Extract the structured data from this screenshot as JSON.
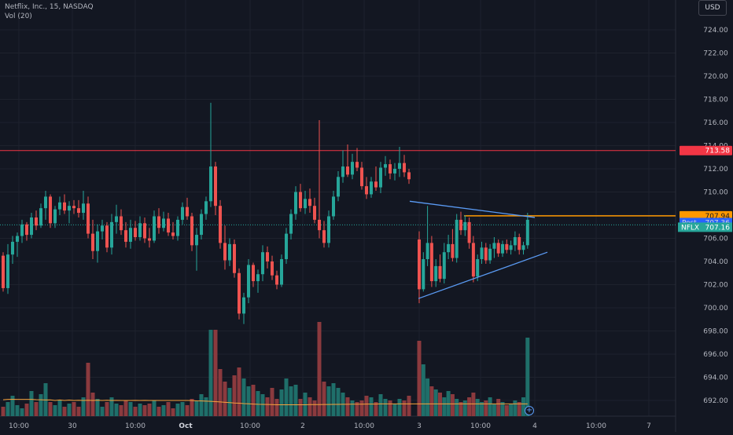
{
  "header": {
    "title": "Netflix, Inc., 15, NASDAQ",
    "volume": "Vol (20)"
  },
  "currency_button": "USD",
  "add_button": "+",
  "price_labels": {
    "resistance": "713.58",
    "orange": "707.94",
    "post": "Post",
    "post_value": "707.36",
    "ticker": "NFLX",
    "last": "707.16"
  },
  "colors": {
    "background": "#131722",
    "up": "#26a69a",
    "down": "#ef5350",
    "vol_up": "#1f6f6a",
    "vol_down": "#8b3a3e",
    "ma": "#f7a23b",
    "trendline": "#5b9cf6",
    "resistance": "#f23645",
    "orange_line": "#ff9800",
    "axis_text": "#b2b5be",
    "grid": "#1e222d"
  },
  "chart_data": {
    "type": "candlestick",
    "symbol": "NFLX",
    "interval": "15",
    "exchange": "NASDAQ",
    "y_ticks": [
      692,
      694,
      696,
      698,
      700,
      702,
      704,
      706,
      708,
      710,
      712,
      714,
      716,
      718,
      720,
      722,
      724
    ],
    "y_range": [
      690.5,
      725.5
    ],
    "x_ticks": [
      "10:00",
      "30",
      "10:00",
      "Oct",
      "10:00",
      "2",
      "10:00",
      "3",
      "10:00",
      "4",
      "10:00",
      "7"
    ],
    "horizontal_levels": {
      "resistance": 713.58,
      "orange": 707.94,
      "post": 707.36,
      "last": 707.16
    },
    "trendlines": [
      {
        "x": [
          521,
          680
        ],
        "y": [
          709.2,
          707.8
        ],
        "color": "trendline"
      },
      {
        "x": [
          532,
          696
        ],
        "y": [
          700.8,
          704.8
        ],
        "color": "trendline"
      }
    ],
    "candles": [
      [
        704.5,
        704.8,
        701.4,
        701.7
      ],
      [
        701.7,
        705.5,
        701.2,
        704.6
      ],
      [
        704.6,
        706.2,
        703.8,
        705.7
      ],
      [
        705.7,
        706.5,
        704.4,
        706.2
      ],
      [
        706.2,
        707.6,
        705.6,
        707.2
      ],
      [
        707.2,
        707.4,
        705.8,
        706.3
      ],
      [
        706.3,
        708.2,
        706.0,
        707.8
      ],
      [
        707.8,
        708.4,
        706.7,
        707.1
      ],
      [
        707.1,
        709.0,
        706.9,
        708.6
      ],
      [
        708.6,
        710.1,
        707.6,
        709.6
      ],
      [
        709.6,
        709.8,
        706.9,
        707.3
      ],
      [
        707.3,
        708.8,
        706.9,
        708.5
      ],
      [
        708.5,
        709.6,
        708.0,
        709.1
      ],
      [
        709.1,
        709.8,
        708.1,
        708.4
      ],
      [
        708.4,
        709.2,
        707.3,
        708.8
      ],
      [
        708.8,
        709.3,
        708.1,
        708.6
      ],
      [
        708.6,
        709.3,
        707.8,
        708.2
      ],
      [
        708.2,
        710.1,
        707.6,
        709.0
      ],
      [
        709.0,
        709.6,
        706.0,
        706.4
      ],
      [
        706.4,
        707.6,
        704.2,
        704.9
      ],
      [
        704.9,
        707.2,
        703.9,
        706.6
      ],
      [
        706.6,
        707.6,
        705.9,
        707.1
      ],
      [
        707.1,
        707.4,
        704.8,
        705.2
      ],
      [
        705.2,
        708.1,
        704.6,
        707.4
      ],
      [
        707.4,
        708.9,
        706.4,
        707.9
      ],
      [
        707.9,
        708.5,
        706.3,
        706.7
      ],
      [
        706.7,
        707.4,
        705.2,
        705.7
      ],
      [
        705.7,
        707.6,
        705.1,
        706.9
      ],
      [
        706.9,
        707.5,
        705.8,
        706.1
      ],
      [
        706.1,
        707.9,
        705.8,
        707.3
      ],
      [
        707.3,
        707.8,
        705.6,
        706.0
      ],
      [
        706.0,
        706.9,
        705.2,
        705.8
      ],
      [
        705.8,
        708.4,
        705.6,
        707.9
      ],
      [
        707.9,
        708.6,
        706.4,
        706.9
      ],
      [
        706.9,
        708.3,
        706.6,
        707.7
      ],
      [
        707.7,
        708.2,
        706.2,
        706.5
      ],
      [
        706.5,
        707.4,
        705.9,
        706.2
      ],
      [
        706.2,
        707.9,
        705.8,
        707.6
      ],
      [
        707.6,
        709.1,
        707.2,
        708.7
      ],
      [
        708.7,
        709.5,
        707.6,
        707.9
      ],
      [
        707.9,
        708.2,
        704.9,
        705.4
      ],
      [
        705.4,
        706.9,
        703.2,
        706.3
      ],
      [
        706.3,
        708.5,
        705.9,
        708.1
      ],
      [
        708.1,
        709.6,
        707.6,
        709.2
      ],
      [
        709.2,
        717.7,
        708.7,
        712.2
      ],
      [
        712.2,
        712.6,
        708.0,
        708.8
      ],
      [
        708.8,
        709.3,
        705.1,
        705.6
      ],
      [
        705.6,
        707.1,
        703.3,
        704.1
      ],
      [
        704.1,
        706.0,
        703.6,
        705.5
      ],
      [
        705.5,
        705.9,
        702.6,
        703.0
      ],
      [
        703.0,
        703.4,
        699.0,
        699.5
      ],
      [
        699.5,
        701.3,
        698.6,
        700.9
      ],
      [
        700.9,
        704.2,
        700.4,
        703.7
      ],
      [
        703.7,
        703.9,
        701.8,
        702.3
      ],
      [
        702.3,
        703.3,
        701.3,
        702.9
      ],
      [
        702.9,
        705.4,
        702.3,
        704.8
      ],
      [
        704.8,
        705.3,
        703.4,
        704.0
      ],
      [
        704.0,
        704.5,
        702.4,
        702.8
      ],
      [
        702.8,
        703.2,
        701.6,
        702.0
      ],
      [
        702.0,
        704.6,
        701.8,
        704.2
      ],
      [
        704.2,
        706.9,
        703.8,
        706.4
      ],
      [
        706.4,
        708.5,
        705.9,
        708.1
      ],
      [
        708.1,
        710.5,
        707.6,
        710.0
      ],
      [
        710.0,
        710.7,
        708.3,
        708.6
      ],
      [
        708.6,
        710.1,
        708.1,
        709.4
      ],
      [
        709.4,
        710.3,
        708.2,
        708.8
      ],
      [
        708.8,
        709.5,
        707.3,
        707.6
      ],
      [
        707.6,
        716.2,
        706.0,
        706.7
      ],
      [
        706.7,
        707.5,
        705.2,
        705.6
      ],
      [
        705.6,
        708.4,
        705.2,
        707.9
      ],
      [
        707.9,
        710.1,
        707.6,
        709.6
      ],
      [
        709.6,
        711.8,
        709.2,
        711.3
      ],
      [
        711.3,
        713.6,
        710.8,
        712.2
      ],
      [
        712.2,
        714.1,
        711.3,
        711.5
      ],
      [
        711.5,
        713.3,
        711.1,
        712.6
      ],
      [
        712.6,
        713.8,
        711.8,
        712.1
      ],
      [
        712.1,
        712.6,
        710.2,
        710.5
      ],
      [
        710.5,
        711.3,
        709.4,
        709.8
      ],
      [
        709.8,
        711.3,
        709.5,
        710.9
      ],
      [
        710.9,
        712.2,
        710.1,
        710.4
      ],
      [
        710.4,
        712.6,
        709.9,
        712.1
      ],
      [
        712.1,
        713.1,
        711.4,
        712.4
      ],
      [
        712.4,
        712.8,
        711.1,
        711.6
      ],
      [
        711.6,
        712.5,
        711.0,
        712.0
      ],
      [
        712.0,
        713.9,
        711.3,
        712.5
      ],
      [
        712.5,
        713.2,
        711.3,
        711.7
      ],
      [
        711.7,
        712.0,
        710.7,
        711.1
      ],
      [
        705.9,
        706.6,
        700.4,
        701.6
      ],
      [
        701.6,
        704.8,
        701.4,
        704.2
      ],
      [
        704.2,
        708.8,
        703.6,
        705.6
      ],
      [
        705.6,
        706.2,
        701.8,
        702.3
      ],
      [
        702.3,
        704.2,
        701.8,
        703.6
      ],
      [
        703.6,
        704.6,
        702.2,
        702.5
      ],
      [
        702.5,
        705.6,
        702.1,
        704.8
      ],
      [
        704.8,
        706.3,
        704.2,
        705.5
      ],
      [
        705.5,
        706.8,
        704.0,
        704.3
      ],
      [
        704.3,
        708.1,
        703.9,
        707.6
      ],
      [
        707.6,
        708.3,
        706.3,
        706.7
      ],
      [
        706.7,
        708.0,
        706.2,
        707.4
      ],
      [
        707.4,
        707.8,
        705.1,
        705.6
      ],
      [
        705.6,
        706.2,
        702.2,
        702.7
      ],
      [
        702.7,
        704.6,
        702.3,
        704.2
      ],
      [
        704.2,
        705.7,
        703.8,
        705.2
      ],
      [
        705.2,
        705.6,
        703.8,
        704.1
      ],
      [
        704.1,
        705.5,
        703.8,
        705.1
      ],
      [
        705.1,
        706.1,
        704.3,
        705.6
      ],
      [
        705.6,
        705.9,
        704.4,
        704.7
      ],
      [
        704.7,
        705.8,
        704.4,
        705.5
      ],
      [
        705.5,
        705.9,
        704.7,
        705.0
      ],
      [
        705.0,
        705.8,
        704.6,
        705.4
      ],
      [
        705.4,
        706.6,
        704.9,
        706.1
      ],
      [
        706.1,
        706.4,
        704.6,
        705.0
      ],
      [
        705.0,
        705.7,
        704.6,
        705.4
      ],
      [
        705.4,
        708.2,
        705.1,
        707.6
      ]
    ],
    "volume_ma": [
      692.06,
      692.09,
      692.1,
      692.09,
      692.09,
      692.09,
      692.09,
      692.07,
      692.06,
      692.04,
      692.05,
      692.0,
      692.04,
      692.0,
      692.03,
      692.0,
      692.02,
      692.0,
      692.02,
      692.0,
      692.02,
      692.0,
      692.02,
      692.0,
      692.01,
      692.0,
      692.0,
      692.0,
      692.01,
      692.0,
      692.01,
      692.0,
      692.0,
      692.0,
      692.0,
      692.0,
      692.0,
      692.0,
      692.0,
      692.0,
      691.99,
      691.97,
      691.96,
      691.94,
      691.92,
      691.9,
      691.87,
      691.84,
      691.81,
      691.78,
      691.76,
      691.73,
      691.71,
      691.69,
      691.67,
      691.66,
      691.65,
      691.64,
      691.63,
      691.63,
      691.63,
      691.63,
      691.63,
      691.63,
      691.63,
      691.64,
      691.64,
      691.64,
      691.65,
      691.65,
      691.66,
      691.66,
      691.67,
      691.67,
      691.68,
      691.68,
      691.68,
      691.69,
      691.69,
      691.69,
      691.7,
      691.7,
      691.7,
      691.7,
      691.7,
      691.7,
      691.7,
      691.7,
      691.7,
      691.7,
      691.7,
      691.7,
      691.7,
      691.7,
      691.7,
      691.7,
      691.7,
      691.7,
      691.7,
      691.7,
      691.7,
      691.7,
      691.7,
      691.7,
      691.7,
      691.7,
      691.7,
      691.7,
      691.7,
      691.7,
      691.7,
      691.7,
      691.7,
      691.7
    ],
    "volumes": [
      0.6,
      0.9,
      1.3,
      0.7,
      0.5,
      0.8,
      1.6,
      0.9,
      1.4,
      2.1,
      0.9,
      0.7,
      1.0,
      0.6,
      0.8,
      0.9,
      0.6,
      1.2,
      3.4,
      1.5,
      1.1,
      0.6,
      0.9,
      1.2,
      0.8,
      0.7,
      1.0,
      0.9,
      0.6,
      0.8,
      0.7,
      0.8,
      1.0,
      0.6,
      0.7,
      0.9,
      0.5,
      0.8,
      0.9,
      0.7,
      1.1,
      1.0,
      1.4,
      1.2,
      5.5,
      5.5,
      3.0,
      2.2,
      1.8,
      2.6,
      3.1,
      2.4,
      1.9,
      2.0,
      1.6,
      1.4,
      1.2,
      1.8,
      1.1,
      1.7,
      2.4,
      1.9,
      2.0,
      1.1,
      1.5,
      1.2,
      1.0,
      6.0,
      2.2,
      1.9,
      2.1,
      1.8,
      1.5,
      1.2,
      1.0,
      0.9,
      1.0,
      1.3,
      1.2,
      0.9,
      1.4,
      1.1,
      1.0,
      0.8,
      1.1,
      1.0,
      1.3,
      4.8,
      3.3,
      2.4,
      1.9,
      1.7,
      1.5,
      1.2,
      1.6,
      1.4,
      1.1,
      0.9,
      1.0,
      1.2,
      1.5,
      1.1,
      0.9,
      1.0,
      1.2,
      0.8,
      1.1,
      0.9,
      0.7,
      0.8,
      1.0,
      0.9,
      1.2,
      5.0
    ]
  }
}
